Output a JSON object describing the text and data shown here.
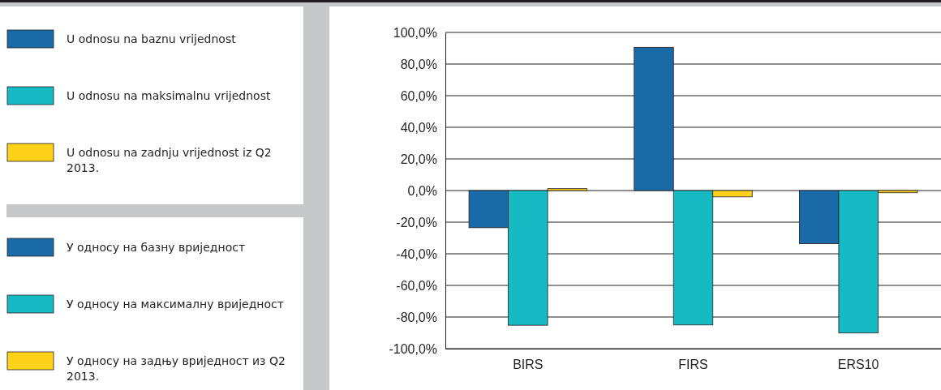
{
  "chart_data": {
    "type": "bar",
    "categories": [
      "BIRS",
      "FIRS",
      "ERS10"
    ],
    "series": [
      {
        "name": "U odnosu na baznu vrijednost",
        "color": "#1b6aa8",
        "values": [
          -23.5,
          90.6,
          -33.6
        ]
      },
      {
        "name": "U odnosu na maksimalnu vrijednost",
        "color": "#15bac2",
        "values": [
          -85.2,
          -85.0,
          -90.1
        ]
      },
      {
        "name": "U odnosu na zadnju vrijednost iz Q2 2013.",
        "color": "#fed218",
        "values": [
          1.2,
          -4.0,
          -1.4
        ]
      }
    ],
    "annotations": [
      "У односу на базну вриједност",
      "У односу на максималну вриједност",
      "У односу на задњу вриједност из Q2 2013."
    ],
    "ylim": [
      -100,
      100
    ],
    "yticks": [
      {
        "value": -100,
        "label": "-100,0%"
      },
      {
        "value": -80,
        "label": "-80,0%"
      },
      {
        "value": -60,
        "label": "-60,0%"
      },
      {
        "value": -40,
        "label": "-40,0%"
      },
      {
        "value": -20,
        "label": "-20,0%"
      },
      {
        "value": 0,
        "label": "0,0%"
      },
      {
        "value": 20,
        "label": "20,0%"
      },
      {
        "value": 40,
        "label": "40,0%"
      },
      {
        "value": 60,
        "label": "60,0%"
      },
      {
        "value": 80,
        "label": "80,0%"
      },
      {
        "value": 100,
        "label": "100,0%"
      }
    ],
    "grid": "y",
    "legend": "left"
  }
}
